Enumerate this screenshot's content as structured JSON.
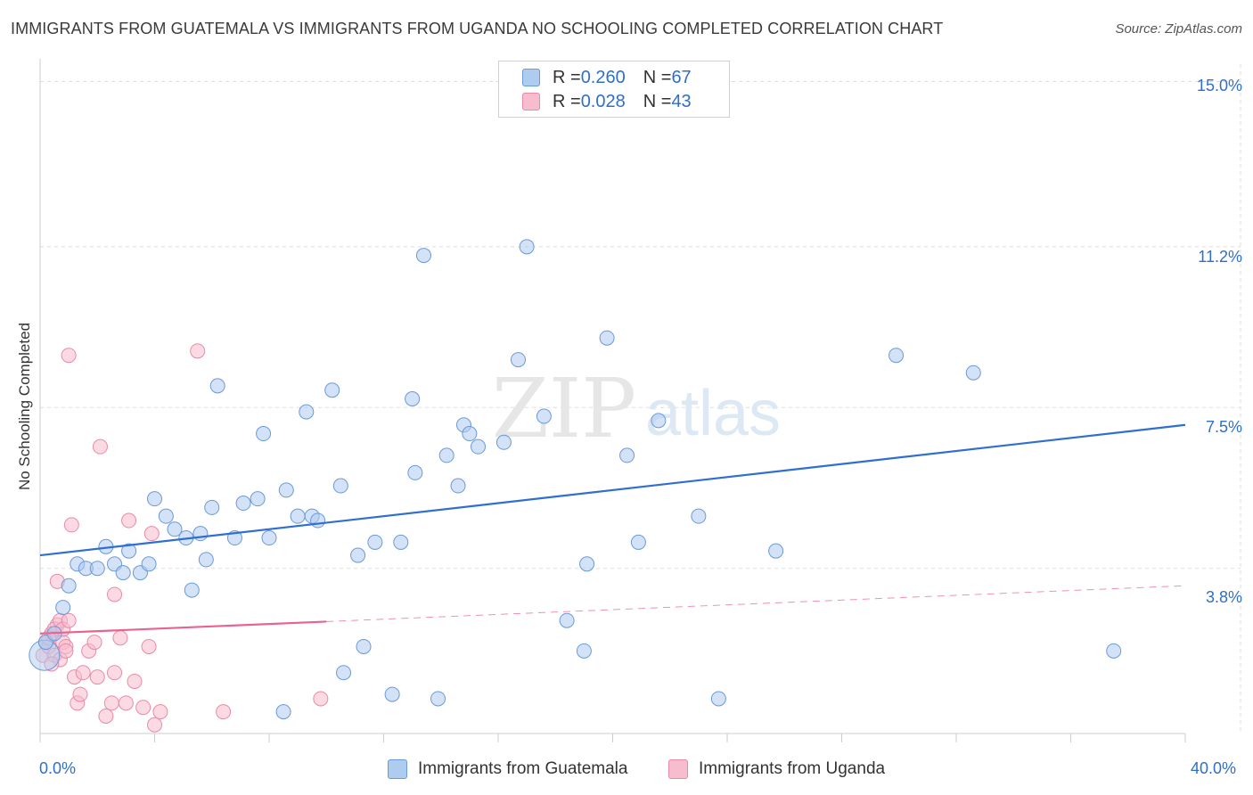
{
  "header": {
    "title": "IMMIGRANTS FROM GUATEMALA VS IMMIGRANTS FROM UGANDA NO SCHOOLING COMPLETED CORRELATION CHART",
    "source": "Source: ZipAtlas.com"
  },
  "legend": {
    "series": [
      {
        "r_label": "R = ",
        "r_value": "0.260",
        "n_label": "N = ",
        "n_value": "67"
      },
      {
        "r_label": "R = ",
        "r_value": "0.028",
        "n_label": "N = ",
        "n_value": "43"
      }
    ],
    "bottom": [
      "Immigrants from Guatemala",
      "Immigrants from Uganda"
    ]
  },
  "watermark": {
    "zip": "ZIP",
    "atlas": "atlas"
  },
  "colors": {
    "blue_fill": "#aecbf0",
    "blue_stroke": "#6a9ad8",
    "blue_line": "#2f6fd0",
    "pink_fill": "#f7bccd",
    "pink_stroke": "#e98aa6",
    "pink_line": "#e8638e",
    "tick_text": "#2f6fc7",
    "grid": "#dddddd"
  },
  "chart_data": {
    "type": "scatter",
    "title": "IMMIGRANTS FROM GUATEMALA VS IMMIGRANTS FROM UGANDA NO SCHOOLING COMPLETED CORRELATION CHART",
    "xlabel": "",
    "ylabel": "No Schooling Completed",
    "xlim": [
      0,
      40
    ],
    "ylim": [
      0,
      15.4
    ],
    "x_tick_labels": [
      {
        "value": 0,
        "label": "0.0%"
      },
      {
        "value": 40,
        "label": "40.0%"
      }
    ],
    "y_tick_labels": [
      {
        "value": 3.8,
        "label": "3.8%"
      },
      {
        "value": 7.5,
        "label": "7.5%"
      },
      {
        "value": 11.2,
        "label": "11.2%"
      },
      {
        "value": 15.0,
        "label": "15.0%"
      }
    ],
    "grid": true,
    "legend_position": "top-center",
    "series": [
      {
        "name": "Immigrants from Guatemala",
        "color": "#aecbf0",
        "r": 0.26,
        "n": 67,
        "trend": {
          "x": [
            0,
            40
          ],
          "y": [
            4.1,
            7.1
          ],
          "dashed_after": null
        },
        "points": [
          [
            0.2,
            2.1
          ],
          [
            0.5,
            2.3
          ],
          [
            0.8,
            2.9
          ],
          [
            1.0,
            3.4
          ],
          [
            1.3,
            3.9
          ],
          [
            1.6,
            3.8
          ],
          [
            2.0,
            3.8
          ],
          [
            2.3,
            4.3
          ],
          [
            2.6,
            3.9
          ],
          [
            2.9,
            3.7
          ],
          [
            3.1,
            4.2
          ],
          [
            3.5,
            3.7
          ],
          [
            3.8,
            3.9
          ],
          [
            4.0,
            5.4
          ],
          [
            4.4,
            5.0
          ],
          [
            4.7,
            4.7
          ],
          [
            5.1,
            4.5
          ],
          [
            5.3,
            3.3
          ],
          [
            5.6,
            4.6
          ],
          [
            5.8,
            4.0
          ],
          [
            6.2,
            8.0
          ],
          [
            6.0,
            5.2
          ],
          [
            6.8,
            4.5
          ],
          [
            7.1,
            5.3
          ],
          [
            7.6,
            5.4
          ],
          [
            7.8,
            6.9
          ],
          [
            8.0,
            4.5
          ],
          [
            8.6,
            5.6
          ],
          [
            9.0,
            5.0
          ],
          [
            9.3,
            7.4
          ],
          [
            9.5,
            5.0
          ],
          [
            9.7,
            4.9
          ],
          [
            10.2,
            7.9
          ],
          [
            10.5,
            5.7
          ],
          [
            11.1,
            4.1
          ],
          [
            11.3,
            2.0
          ],
          [
            11.7,
            4.4
          ],
          [
            12.3,
            0.9
          ],
          [
            12.6,
            4.4
          ],
          [
            13.0,
            7.7
          ],
          [
            13.1,
            6.0
          ],
          [
            13.4,
            11.0
          ],
          [
            13.9,
            0.8
          ],
          [
            14.2,
            6.4
          ],
          [
            14.6,
            5.7
          ],
          [
            14.8,
            7.1
          ],
          [
            15.0,
            6.9
          ],
          [
            15.3,
            6.6
          ],
          [
            16.2,
            6.7
          ],
          [
            16.7,
            8.6
          ],
          [
            17.0,
            11.2
          ],
          [
            17.6,
            7.3
          ],
          [
            18.4,
            2.6
          ],
          [
            19.0,
            1.9
          ],
          [
            19.1,
            3.9
          ],
          [
            19.8,
            9.1
          ],
          [
            20.5,
            6.4
          ],
          [
            20.9,
            4.4
          ],
          [
            21.6,
            7.2
          ],
          [
            23.0,
            5.0
          ],
          [
            23.7,
            0.8
          ],
          [
            25.7,
            4.2
          ],
          [
            29.9,
            8.7
          ],
          [
            32.6,
            8.3
          ],
          [
            37.5,
            1.9
          ],
          [
            10.6,
            1.4
          ],
          [
            8.5,
            0.5
          ]
        ]
      },
      {
        "name": "Immigrants from Uganda",
        "color": "#f7bccd",
        "r": 0.028,
        "n": 43,
        "trend": {
          "x": [
            0,
            40
          ],
          "y": [
            2.3,
            3.4
          ],
          "dashed_after": 10
        },
        "points": [
          [
            0.1,
            1.8
          ],
          [
            0.2,
            2.1
          ],
          [
            0.3,
            2.0
          ],
          [
            0.4,
            2.3
          ],
          [
            0.5,
            1.8
          ],
          [
            0.6,
            2.5
          ],
          [
            0.5,
            2.4
          ],
          [
            0.7,
            1.7
          ],
          [
            0.8,
            2.1
          ],
          [
            0.9,
            2.0
          ],
          [
            0.6,
            3.5
          ],
          [
            0.7,
            2.6
          ],
          [
            0.8,
            2.4
          ],
          [
            0.9,
            1.9
          ],
          [
            1.0,
            2.6
          ],
          [
            1.1,
            4.8
          ],
          [
            1.2,
            1.3
          ],
          [
            1.3,
            0.7
          ],
          [
            1.4,
            0.9
          ],
          [
            1.5,
            1.4
          ],
          [
            1.0,
            8.7
          ],
          [
            1.7,
            1.9
          ],
          [
            1.9,
            2.1
          ],
          [
            2.1,
            6.6
          ],
          [
            2.0,
            1.3
          ],
          [
            2.3,
            0.4
          ],
          [
            2.5,
            0.7
          ],
          [
            2.6,
            1.4
          ],
          [
            2.8,
            2.2
          ],
          [
            2.6,
            3.2
          ],
          [
            3.0,
            0.7
          ],
          [
            3.3,
            1.2
          ],
          [
            3.6,
            0.6
          ],
          [
            3.8,
            2.0
          ],
          [
            4.0,
            0.2
          ],
          [
            4.2,
            0.5
          ],
          [
            3.9,
            4.6
          ],
          [
            5.5,
            8.8
          ],
          [
            6.4,
            0.5
          ],
          [
            3.1,
            4.9
          ],
          [
            9.8,
            0.8
          ],
          [
            0.3,
            2.2
          ],
          [
            0.4,
            1.6
          ]
        ]
      }
    ]
  }
}
